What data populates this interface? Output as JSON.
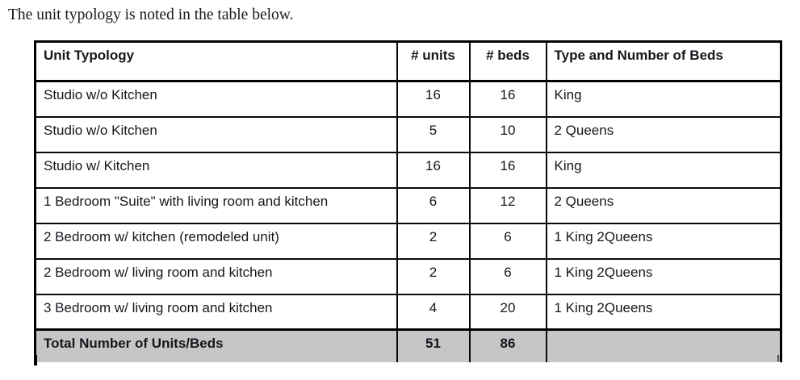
{
  "intro_text": "The unit typology is noted in the table below.",
  "table": {
    "headers": [
      "Unit Typology",
      "# units",
      "# beds",
      "Type and Number of Beds"
    ],
    "rows": [
      [
        "Studio w/o Kitchen",
        "16",
        "16",
        "King"
      ],
      [
        "Studio w/o Kitchen",
        "5",
        "10",
        "2 Queens"
      ],
      [
        "Studio w/ Kitchen",
        "16",
        "16",
        "King"
      ],
      [
        "1 Bedroom \"Suite\" with living room and kitchen",
        "6",
        "12",
        "2 Queens"
      ],
      [
        "2 Bedroom w/ kitchen (remodeled unit)",
        "2",
        "6",
        "1 King 2Queens"
      ],
      [
        "2 Bedroom w/ living room and kitchen",
        "2",
        "6",
        "1 King 2Queens"
      ],
      [
        "3 Bedroom w/ living room and kitchen",
        "4",
        "20",
        "1 King 2Queens"
      ]
    ],
    "total_row": {
      "label": "Total Number of Units/Beds",
      "units": "51",
      "beds": "86",
      "type": ""
    },
    "total_row_bg": "#c6c6c6"
  }
}
